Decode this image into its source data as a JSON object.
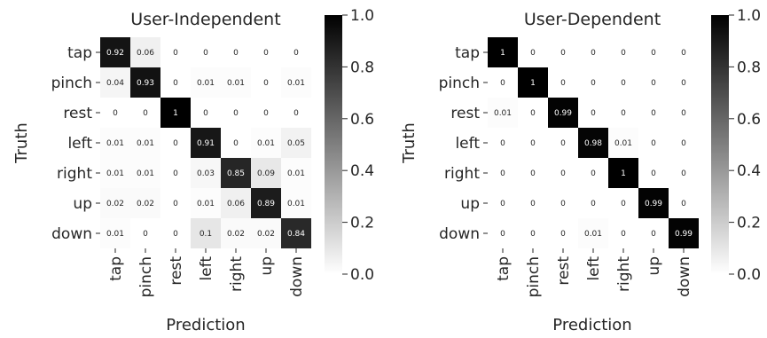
{
  "chart_data": [
    {
      "type": "heatmap",
      "title": "User-Independent",
      "xlabel": "Prediction",
      "ylabel": "Truth",
      "rows": [
        "tap",
        "pinch",
        "rest",
        "left",
        "right",
        "up",
        "down"
      ],
      "cols": [
        "tap",
        "pinch",
        "rest",
        "left",
        "right",
        "up",
        "down"
      ],
      "values": [
        [
          0.92,
          0.06,
          0,
          0,
          0,
          0,
          0
        ],
        [
          0.04,
          0.93,
          0,
          0.01,
          0.01,
          0,
          0.01
        ],
        [
          0,
          0,
          1,
          0,
          0,
          0,
          0
        ],
        [
          0.01,
          0.01,
          0,
          0.91,
          0,
          0.01,
          0.05
        ],
        [
          0.01,
          0.01,
          0,
          0.03,
          0.85,
          0.09,
          0.01
        ],
        [
          0.02,
          0.02,
          0,
          0.01,
          0.06,
          0.89,
          0.01
        ],
        [
          0.01,
          0,
          0,
          0.1,
          0.02,
          0.02,
          0.84
        ]
      ],
      "colorbar": {
        "range": [
          0,
          1
        ],
        "ticks": [
          "0.0",
          "0.2",
          "0.4",
          "0.6",
          "0.8",
          "1.0"
        ],
        "cmap": "white-to-black"
      }
    },
    {
      "type": "heatmap",
      "title": "User-Dependent",
      "xlabel": "Prediction",
      "ylabel": "Truth",
      "rows": [
        "tap",
        "pinch",
        "rest",
        "left",
        "right",
        "up",
        "down"
      ],
      "cols": [
        "tap",
        "pinch",
        "rest",
        "left",
        "right",
        "up",
        "down"
      ],
      "values": [
        [
          1,
          0,
          0,
          0,
          0,
          0,
          0
        ],
        [
          0,
          1,
          0,
          0,
          0,
          0,
          0
        ],
        [
          0.01,
          0,
          0.99,
          0,
          0,
          0,
          0
        ],
        [
          0,
          0,
          0,
          0.98,
          0.01,
          0,
          0
        ],
        [
          0,
          0,
          0,
          0,
          1,
          0,
          0
        ],
        [
          0,
          0,
          0,
          0,
          0,
          0.99,
          0
        ],
        [
          0,
          0,
          0,
          0.01,
          0,
          0,
          0.99
        ]
      ],
      "colorbar": {
        "range": [
          0,
          1
        ],
        "ticks": [
          "0.0",
          "0.2",
          "0.4",
          "0.6",
          "0.8",
          "1.0"
        ],
        "cmap": "white-to-black"
      }
    }
  ]
}
